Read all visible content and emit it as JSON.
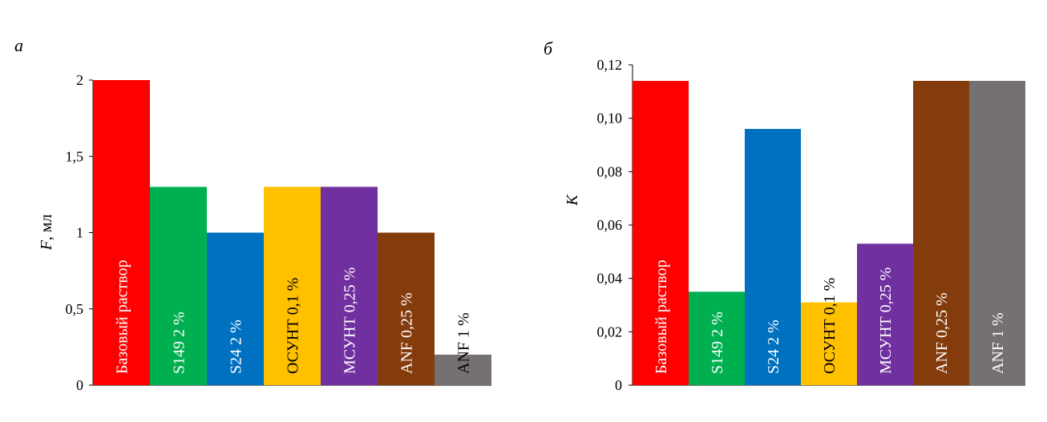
{
  "chart_data": [
    {
      "type": "bar",
      "panel_label": "а",
      "ylabel_symbol": "F",
      "ylabel_unit": ", мл",
      "ylim": [
        0,
        2
      ],
      "yticks": [
        "0",
        "0,5",
        "1",
        "1,5",
        "2"
      ],
      "ytick_values": [
        0,
        0.5,
        1,
        1.5,
        2
      ],
      "grid": false,
      "categories": [
        "Базовый раствор",
        "S149 2 %",
        "S24 2 %",
        "ОСУНТ 0,1 %",
        "МСУНТ 0,25 %",
        "ANF 0,25 %",
        "ANF 1 %"
      ],
      "values": [
        2.0,
        1.3,
        1.0,
        1.3,
        1.3,
        1.0,
        0.2
      ],
      "colors": [
        "#ff0000",
        "#00b050",
        "#0070c0",
        "#ffc000",
        "#7030a0",
        "#843c0c",
        "#767171"
      ],
      "label_colors": [
        "#ffffff",
        "#ffffff",
        "#ffffff",
        "#000000",
        "#ffffff",
        "#ffffff",
        "#000000"
      ]
    },
    {
      "type": "bar",
      "panel_label": "б",
      "ylabel_symbol": "K",
      "ylabel_unit": "",
      "ylim": [
        0,
        0.12
      ],
      "yticks": [
        "0",
        "0,02",
        "0,04",
        "0,06",
        "0,08",
        "0,10",
        "0,12"
      ],
      "ytick_values": [
        0,
        0.02,
        0.04,
        0.06,
        0.08,
        0.1,
        0.12
      ],
      "grid": false,
      "categories": [
        "Базовый раствор",
        "S149 2 %",
        "S24 2 %",
        "ОСУНТ 0,1 %",
        "МСУНТ 0,25 %",
        "ANF 0,25 %",
        "ANF 1 %"
      ],
      "values": [
        0.114,
        0.035,
        0.096,
        0.031,
        0.053,
        0.114,
        0.114
      ],
      "colors": [
        "#ff0000",
        "#00b050",
        "#0070c0",
        "#ffc000",
        "#7030a0",
        "#843c0c",
        "#767171"
      ],
      "label_colors": [
        "#ffffff",
        "#ffffff",
        "#ffffff",
        "#000000",
        "#ffffff",
        "#ffffff",
        "#ffffff"
      ]
    }
  ]
}
